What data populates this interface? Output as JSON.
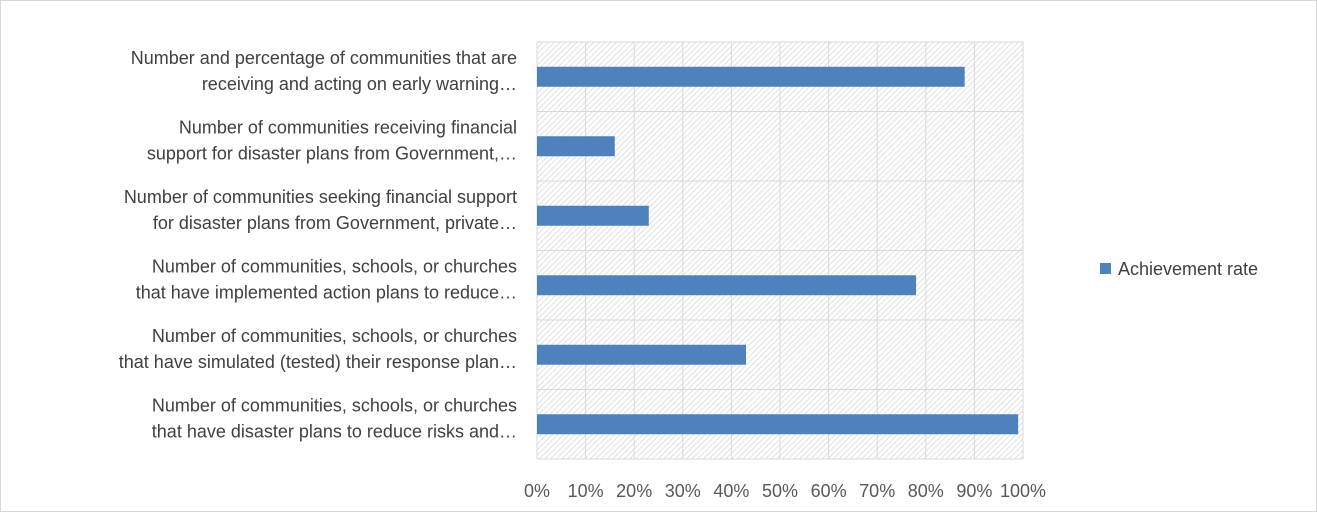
{
  "chart_data": {
    "type": "bar",
    "orientation": "horizontal",
    "categories": [
      [
        "Number and percentage of communities that are",
        "receiving and acting on early warning…"
      ],
      [
        "Number of communities receiving financial",
        "support for disaster plans from Government,…"
      ],
      [
        "Number of communities seeking financial support",
        "for disaster plans from Government, private…"
      ],
      [
        "Number of communities, schools, or churches",
        "that have implemented action plans to reduce…"
      ],
      [
        "Number of communities, schools, or churches",
        "that have simulated (tested) their response plan…"
      ],
      [
        "Number of communities, schools, or churches",
        "that have disaster plans to reduce risks and…"
      ]
    ],
    "series": [
      {
        "name": "Achievement rate",
        "values": [
          0.88,
          0.16,
          0.23,
          0.78,
          0.43,
          0.99
        ]
      }
    ],
    "xlim": [
      0,
      1
    ],
    "xticks": [
      "0%",
      "10%",
      "20%",
      "30%",
      "40%",
      "50%",
      "60%",
      "70%",
      "80%",
      "90%",
      "100%"
    ],
    "grid": true,
    "legend_position": "right",
    "bar_color": "#4f81bd",
    "plot_background": "hatched gray",
    "title": "",
    "xlabel": "",
    "ylabel": ""
  }
}
